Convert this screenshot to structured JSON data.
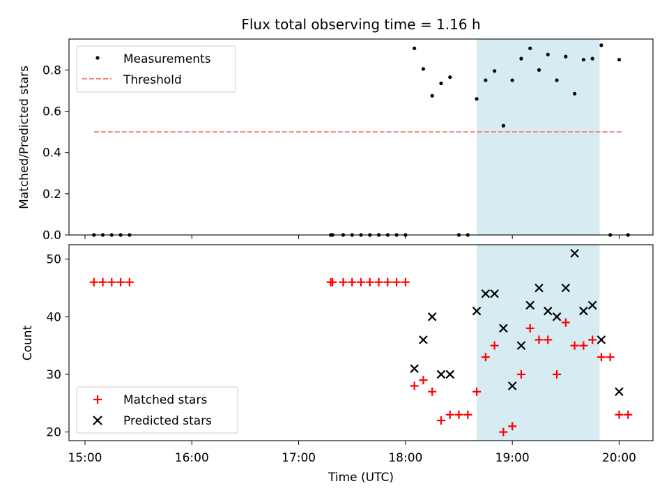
{
  "chart_data": [
    {
      "type": "scatter",
      "title": "Flux total observing time = 1.16 h",
      "ylabel": "Matched/Predicted stars",
      "xlim": [
        "14:51",
        "20:19"
      ],
      "ylim": [
        0,
        0.95
      ],
      "yticks": [
        "0.0",
        "0.2",
        "0.4",
        "0.6",
        "0.8"
      ],
      "grid": false,
      "legend_position": "upper-left",
      "highlight_span": [
        "18:40",
        "19:49"
      ],
      "highlight_color": "#add8e6",
      "threshold": {
        "name": "Threshold",
        "y": 0.5,
        "x_range": [
          "15:05",
          "20:02"
        ],
        "color": "#f08080"
      },
      "series": [
        {
          "name": "Measurements",
          "color": "#000000",
          "marker": "dot",
          "points": [
            [
              "15:05",
              0
            ],
            [
              "15:10",
              0
            ],
            [
              "15:15",
              0
            ],
            [
              "15:20",
              0
            ],
            [
              "15:25",
              0
            ],
            [
              "17:18",
              0
            ],
            [
              "17:19",
              0
            ],
            [
              "17:25",
              0
            ],
            [
              "17:30",
              0
            ],
            [
              "17:35",
              0
            ],
            [
              "17:40",
              0
            ],
            [
              "17:45",
              0
            ],
            [
              "17:50",
              0
            ],
            [
              "17:55",
              0
            ],
            [
              "18:00",
              0
            ],
            [
              "18:05",
              0.905
            ],
            [
              "18:10",
              0.805
            ],
            [
              "18:15",
              0.675
            ],
            [
              "18:20",
              0.735
            ],
            [
              "18:25",
              0.765
            ],
            [
              "18:30",
              0
            ],
            [
              "18:35",
              0
            ],
            [
              "18:40",
              0.66
            ],
            [
              "18:45",
              0.75
            ],
            [
              "18:50",
              0.795
            ],
            [
              "18:55",
              0.53
            ],
            [
              "19:00",
              0.75
            ],
            [
              "19:05",
              0.855
            ],
            [
              "19:10",
              0.905
            ],
            [
              "19:15",
              0.8
            ],
            [
              "19:20",
              0.875
            ],
            [
              "19:25",
              0.75
            ],
            [
              "19:30",
              0.865
            ],
            [
              "19:35",
              0.685
            ],
            [
              "19:40",
              0.85
            ],
            [
              "19:45",
              0.855
            ],
            [
              "19:50",
              0.92
            ],
            [
              "19:55",
              0
            ],
            [
              "20:00",
              0.85
            ],
            [
              "20:05",
              0
            ]
          ]
        }
      ]
    },
    {
      "type": "scatter",
      "xlabel": "Time (UTC)",
      "ylabel": "Count",
      "xlim": [
        "14:51",
        "20:19"
      ],
      "ylim": [
        18.5,
        52.5
      ],
      "yticks": [
        "20",
        "30",
        "40",
        "50"
      ],
      "xticks": [
        "15:00",
        "16:00",
        "17:00",
        "18:00",
        "19:00",
        "20:00"
      ],
      "grid": false,
      "legend_position": "lower-left",
      "highlight_span": [
        "18:40",
        "19:49"
      ],
      "highlight_color": "#add8e6",
      "series": [
        {
          "name": "Matched stars",
          "color": "#ff0000",
          "marker": "plus",
          "points": [
            [
              "15:05",
              46
            ],
            [
              "15:10",
              46
            ],
            [
              "15:15",
              46
            ],
            [
              "15:20",
              46
            ],
            [
              "15:25",
              46
            ],
            [
              "17:18",
              46
            ],
            [
              "17:19",
              46
            ],
            [
              "17:25",
              46
            ],
            [
              "17:30",
              46
            ],
            [
              "17:35",
              46
            ],
            [
              "17:40",
              46
            ],
            [
              "17:45",
              46
            ],
            [
              "17:50",
              46
            ],
            [
              "17:55",
              46
            ],
            [
              "18:00",
              46
            ],
            [
              "18:05",
              28
            ],
            [
              "18:10",
              29
            ],
            [
              "18:15",
              27
            ],
            [
              "18:20",
              22
            ],
            [
              "18:25",
              23
            ],
            [
              "18:30",
              23
            ],
            [
              "18:35",
              23
            ],
            [
              "18:40",
              27
            ],
            [
              "18:45",
              33
            ],
            [
              "18:50",
              35
            ],
            [
              "18:55",
              20
            ],
            [
              "19:00",
              21
            ],
            [
              "19:05",
              30
            ],
            [
              "19:10",
              38
            ],
            [
              "19:15",
              36
            ],
            [
              "19:20",
              36
            ],
            [
              "19:25",
              30
            ],
            [
              "19:30",
              39
            ],
            [
              "19:35",
              35
            ],
            [
              "19:40",
              35
            ],
            [
              "19:45",
              36
            ],
            [
              "19:50",
              33
            ],
            [
              "19:55",
              33
            ],
            [
              "20:00",
              23
            ],
            [
              "20:05",
              23
            ]
          ]
        },
        {
          "name": "Predicted stars",
          "color": "#000000",
          "marker": "x",
          "points": [
            [
              "18:05",
              31
            ],
            [
              "18:10",
              36
            ],
            [
              "18:15",
              40
            ],
            [
              "18:20",
              30
            ],
            [
              "18:25",
              30
            ],
            [
              "18:40",
              41
            ],
            [
              "18:45",
              44
            ],
            [
              "18:50",
              44
            ],
            [
              "18:55",
              38
            ],
            [
              "19:00",
              28
            ],
            [
              "19:05",
              35
            ],
            [
              "19:10",
              42
            ],
            [
              "19:15",
              45
            ],
            [
              "19:20",
              41
            ],
            [
              "19:25",
              40
            ],
            [
              "19:30",
              45
            ],
            [
              "19:35",
              51
            ],
            [
              "19:40",
              41
            ],
            [
              "19:45",
              42
            ],
            [
              "19:50",
              36
            ],
            [
              "20:00",
              27
            ]
          ]
        }
      ]
    }
  ]
}
